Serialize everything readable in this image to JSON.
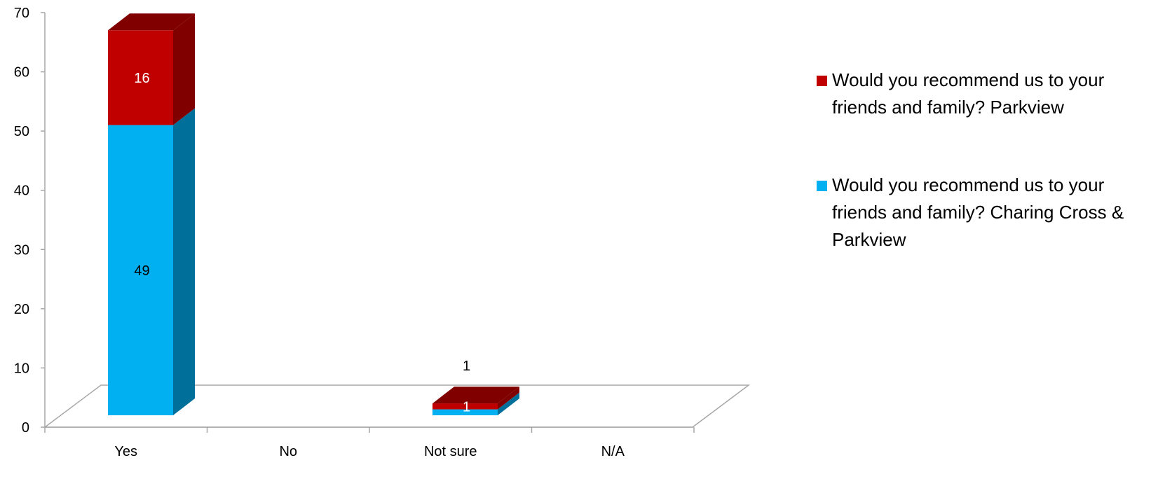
{
  "chart_data": {
    "type": "bar",
    "stacked": true,
    "three_d": true,
    "categories": [
      "Yes",
      "No",
      "Not sure",
      "N/A"
    ],
    "series": [
      {
        "name": "Would you recommend us to your friends and family? Charing Cross & Parkview",
        "color": "#00B0F0",
        "side_color": "#006F99",
        "values": [
          49,
          0,
          1,
          0
        ],
        "value_labels": [
          "49",
          "",
          "1",
          ""
        ]
      },
      {
        "name": "Would you recommend us to your friends and family? Parkview",
        "color": "#C00000",
        "side_color": "#800000",
        "values": [
          16,
          0,
          1,
          0
        ],
        "value_labels": [
          "16",
          "",
          "1",
          ""
        ]
      }
    ],
    "ylim": [
      0,
      70
    ],
    "yticks": [
      0,
      10,
      20,
      30,
      40,
      50,
      60,
      70
    ],
    "grid": false,
    "legend_position": "right",
    "legend_order": [
      1,
      0
    ]
  }
}
